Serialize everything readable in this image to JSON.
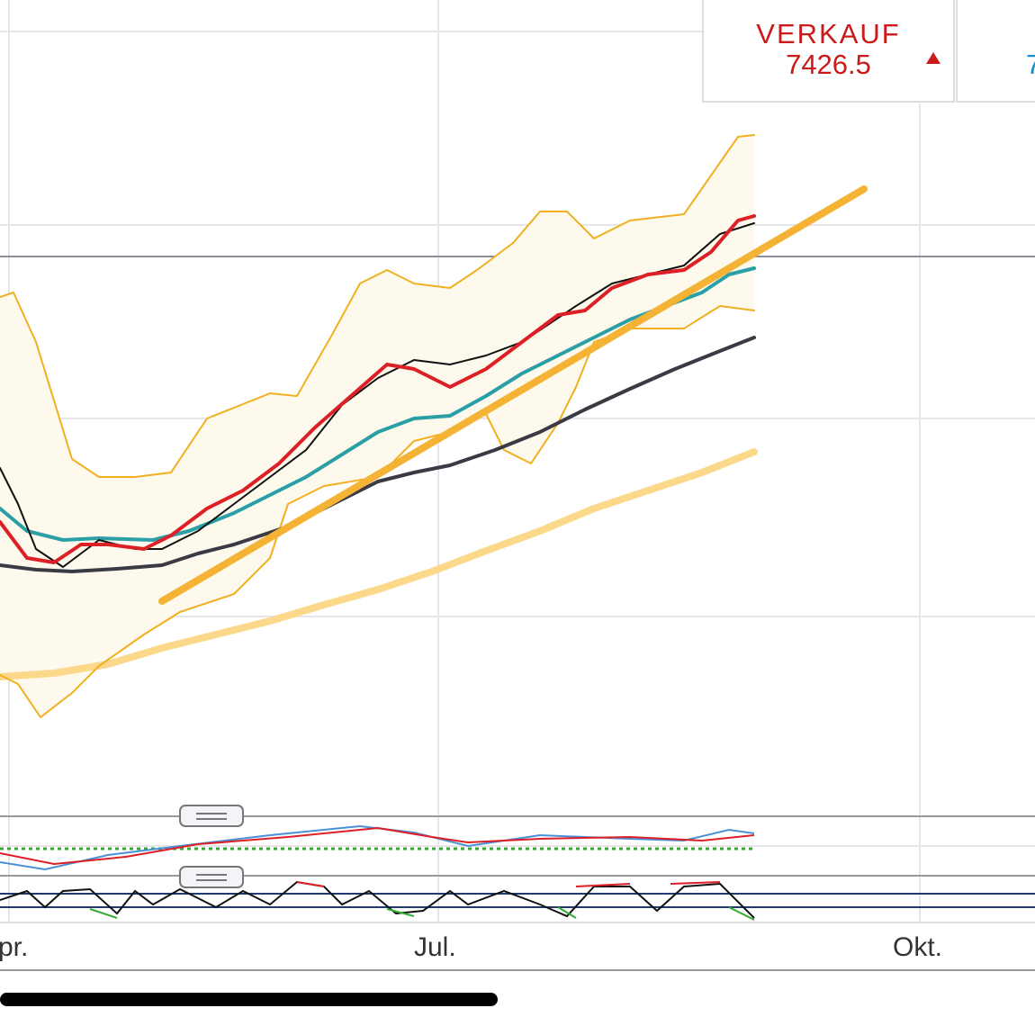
{
  "sell_box": {
    "label": "VERKAUF",
    "price": "7426.5"
  },
  "buy_box": {
    "price": "7"
  },
  "x_axis": {
    "labels": [
      "pr.",
      "Jul.",
      "Okt."
    ]
  }
}
